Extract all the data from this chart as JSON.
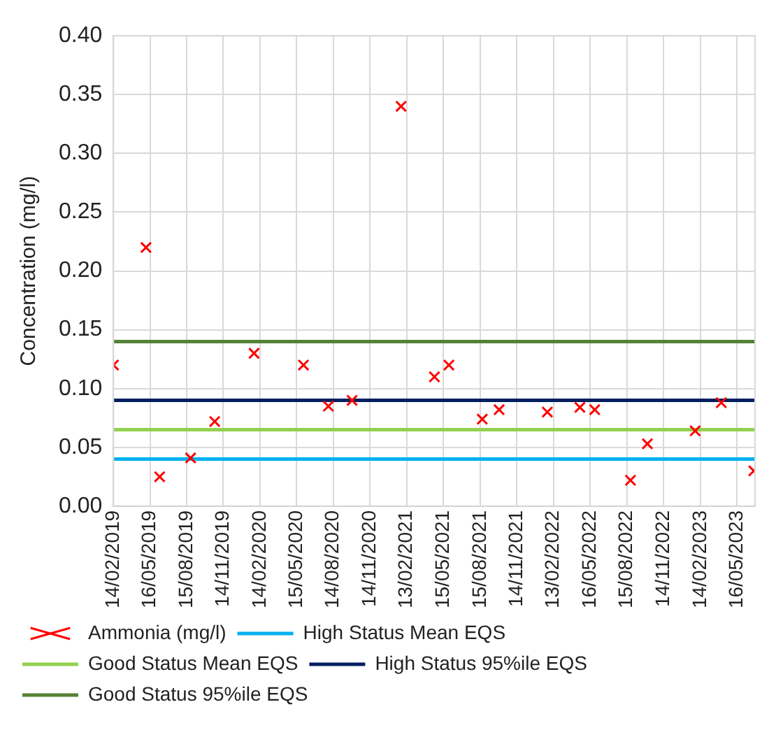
{
  "chart_data": {
    "type": "scatter",
    "ylabel": "Concentration (mg/l)",
    "xlim": [
      "2019-02-14",
      "2023-06-30"
    ],
    "xticks": [
      {
        "value": "2019-02-14",
        "label": "14/02/2019"
      },
      {
        "value": "2019-05-16",
        "label": "16/05/2019"
      },
      {
        "value": "2019-08-15",
        "label": "15/08/2019"
      },
      {
        "value": "2019-11-14",
        "label": "14/11/2019"
      },
      {
        "value": "2020-02-14",
        "label": "14/02/2020"
      },
      {
        "value": "2020-05-15",
        "label": "15/05/2020"
      },
      {
        "value": "2020-08-14",
        "label": "14/08/2020"
      },
      {
        "value": "2020-11-14",
        "label": "14/11/2020"
      },
      {
        "value": "2021-02-13",
        "label": "13/02/2021"
      },
      {
        "value": "2021-05-15",
        "label": "15/05/2021"
      },
      {
        "value": "2021-08-15",
        "label": "15/08/2021"
      },
      {
        "value": "2021-11-14",
        "label": "14/11/2021"
      },
      {
        "value": "2022-02-13",
        "label": "13/02/2022"
      },
      {
        "value": "2022-05-16",
        "label": "16/05/2022"
      },
      {
        "value": "2022-08-15",
        "label": "15/08/2022"
      },
      {
        "value": "2022-11-14",
        "label": "14/11/2022"
      },
      {
        "value": "2023-02-14",
        "label": "14/02/2023"
      },
      {
        "value": "2023-05-16",
        "label": "16/05/2023"
      }
    ],
    "ylim": [
      0,
      0.4
    ],
    "yticks": [
      {
        "value": 0,
        "label": "0.00"
      },
      {
        "value": 0.05,
        "label": "0.05"
      },
      {
        "value": 0.1,
        "label": "0.10"
      },
      {
        "value": 0.15,
        "label": "0.15"
      },
      {
        "value": 0.2,
        "label": "0.20"
      },
      {
        "value": 0.25,
        "label": "0.25"
      },
      {
        "value": 0.3,
        "label": "0.30"
      },
      {
        "value": 0.35,
        "label": "0.35"
      },
      {
        "value": 0.4,
        "label": "0.40"
      }
    ],
    "x": [
      "2019-02-14",
      "2019-05-06",
      "2019-06-09",
      "2019-08-25",
      "2019-10-24",
      "2020-01-30",
      "2020-06-01",
      "2020-08-02",
      "2020-09-30",
      "2021-01-30",
      "2021-04-23",
      "2021-05-29",
      "2021-08-20",
      "2021-10-01",
      "2022-01-29",
      "2022-04-20",
      "2022-05-27",
      "2022-08-24",
      "2022-10-05",
      "2023-02-01",
      "2023-04-07",
      "2023-06-27"
    ],
    "series": [
      {
        "name": "Ammonia (mg/l)",
        "color": "#ff0000",
        "values": [
          0.12,
          0.22,
          0.025,
          0.041,
          0.072,
          0.13,
          0.12,
          0.085,
          0.09,
          0.34,
          0.11,
          0.12,
          0.074,
          0.082,
          0.08,
          0.084,
          0.082,
          0.022,
          0.053,
          0.064,
          0.088,
          0.03
        ]
      }
    ],
    "ref_lines": [
      {
        "axis": "y",
        "value": 0.04,
        "label": "High Status Mean EQS",
        "color": "#00b0f0"
      },
      {
        "axis": "y",
        "value": 0.065,
        "label": "Good Status Mean EQS",
        "color": "#92d050"
      },
      {
        "axis": "y",
        "value": 0.09,
        "label": "High Status 95%ile EQS",
        "color": "#002060"
      },
      {
        "axis": "y",
        "value": 0.14,
        "label": "Good Status 95%ile EQS",
        "color": "#548235"
      }
    ],
    "marker": "cross",
    "grid": true,
    "legend": "bottom"
  }
}
